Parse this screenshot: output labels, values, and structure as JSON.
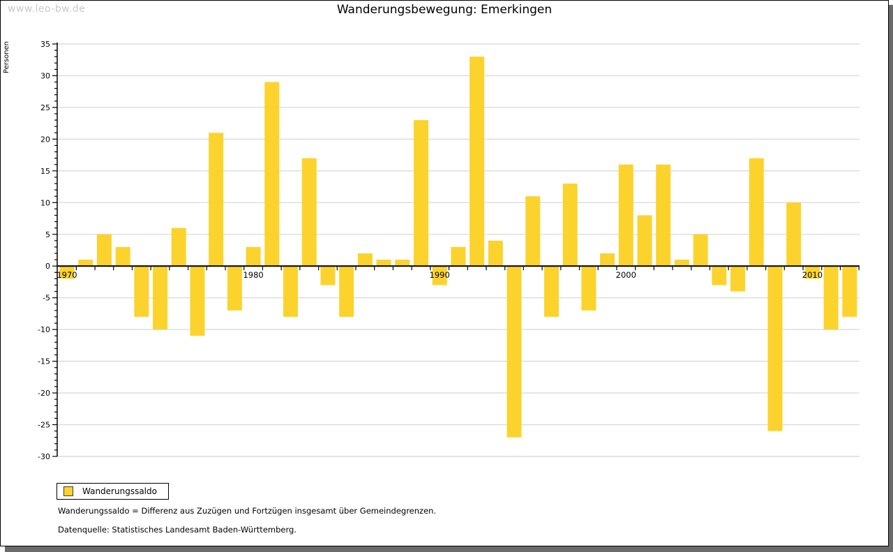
{
  "watermark": "www.leo-bw.de",
  "title": "Wanderungsbewegung: Emerkingen",
  "y_axis_label": "Personen",
  "legend": {
    "label": "Wanderungssaldo"
  },
  "footnotes": {
    "definition": "Wanderungssaldo = Differenz aus Zuzügen und Fortzügen insgesamt über Gemeindegrenzen.",
    "source": "Datenquelle: Statistisches Landesamt Baden-Württemberg."
  },
  "colors": {
    "bar": "#fcd32d",
    "grid": "#dcdcdc",
    "axis": "#000000",
    "watermark": "#c9c9c9",
    "shadow": "#6b6b6b"
  },
  "chart_data": {
    "type": "bar",
    "title": "Wanderungsbewegung: Emerkingen",
    "xlabel": "",
    "ylabel": "Personen",
    "ylim": [
      -30,
      35
    ],
    "y_tick_step": 5,
    "y_minor_tick_step": 1,
    "grid": true,
    "legend_position": "bottom-left",
    "x_major_tick_labels": [
      "1970",
      "1980",
      "1990",
      "2000",
      "2010"
    ],
    "x_major_tick_years": [
      1970,
      1980,
      1990,
      2000,
      2010
    ],
    "series_name": "Wanderungssaldo",
    "years": [
      1970,
      1971,
      1972,
      1973,
      1974,
      1975,
      1976,
      1977,
      1978,
      1979,
      1980,
      1981,
      1982,
      1983,
      1984,
      1985,
      1986,
      1987,
      1988,
      1989,
      1990,
      1991,
      1992,
      1993,
      1994,
      1995,
      1996,
      1997,
      1998,
      1999,
      2000,
      2001,
      2002,
      2003,
      2004,
      2005,
      2006,
      2007,
      2008,
      2009,
      2010,
      2011,
      2012
    ],
    "values": [
      -2,
      1,
      5,
      3,
      -8,
      -10,
      6,
      -11,
      21,
      -7,
      3,
      29,
      -8,
      17,
      -3,
      -8,
      2,
      1,
      1,
      23,
      -3,
      3,
      33,
      4,
      -27,
      11,
      -8,
      13,
      -7,
      2,
      16,
      8,
      16,
      1,
      5,
      -3,
      -4,
      17,
      -26,
      10,
      -2,
      -10,
      -8
    ]
  }
}
